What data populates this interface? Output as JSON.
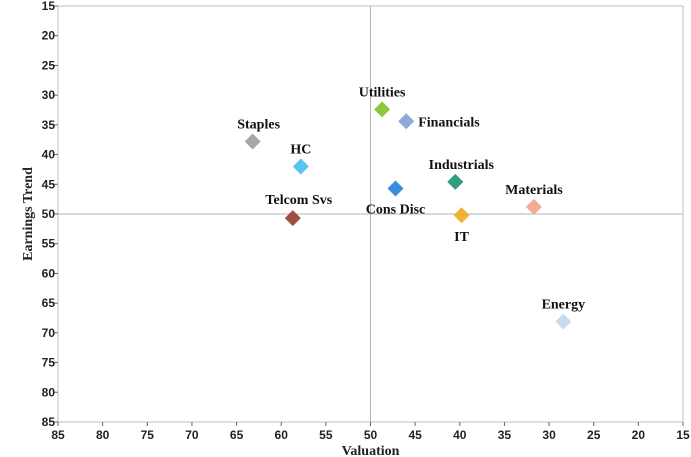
{
  "chart_data": {
    "type": "scatter",
    "xlabel": "Valuation",
    "ylabel": "Earnings Trend",
    "x_reversed": true,
    "y_reversed": true,
    "xlim": [
      85,
      15
    ],
    "ylim": [
      15,
      85
    ],
    "x_ticks": [
      "85",
      "80",
      "75",
      "70",
      "65",
      "60",
      "55",
      "50",
      "45",
      "40",
      "35",
      "30",
      "25",
      "20",
      "15"
    ],
    "y_ticks": [
      "15",
      "20",
      "25",
      "30",
      "35",
      "40",
      "45",
      "50",
      "55",
      "60",
      "65",
      "70",
      "75",
      "80",
      "85"
    ],
    "quadrant_lines": {
      "x": 50,
      "y": 50
    },
    "marker": "diamond",
    "points": [
      {
        "label": "Utilities",
        "x": 48.7,
        "y": 32.4,
        "color": "#8DC63F",
        "label_pos": "above"
      },
      {
        "label": "Financials",
        "x": 46.0,
        "y": 34.4,
        "color": "#8EA9DB",
        "label_pos": "right"
      },
      {
        "label": "Staples",
        "x": 63.2,
        "y": 37.8,
        "color": "#A6A6A6",
        "label_pos": "above"
      },
      {
        "label": "HC",
        "x": 57.8,
        "y": 42.0,
        "color": "#56C5F0",
        "label_pos": "above"
      },
      {
        "label": "Industrials",
        "x": 40.5,
        "y": 44.6,
        "color": "#2E9E7F",
        "label_pos": "above-right"
      },
      {
        "label": "Cons Disc",
        "x": 47.2,
        "y": 45.7,
        "color": "#3A8DDE",
        "label_pos": "below"
      },
      {
        "label": "Materials",
        "x": 31.7,
        "y": 48.8,
        "color": "#F4A99A",
        "label_pos": "above"
      },
      {
        "label": "Telcom Svs",
        "x": 58.7,
        "y": 50.7,
        "color": "#A0503F",
        "label_pos": "above"
      },
      {
        "label": "IT",
        "x": 39.8,
        "y": 50.2,
        "color": "#F2B134",
        "label_pos": "below"
      },
      {
        "label": "Energy",
        "x": 28.4,
        "y": 68.1,
        "color": "#C9D9EE",
        "label_pos": "above"
      }
    ]
  }
}
